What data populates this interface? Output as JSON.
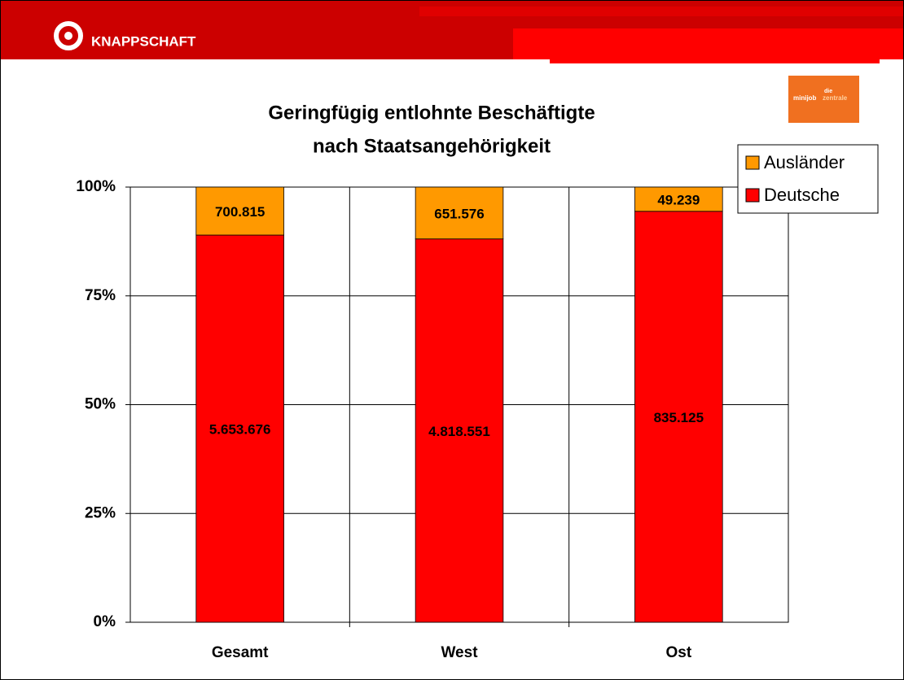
{
  "header": {
    "brand": "KNAPPSCHAFT",
    "logo_small": "die",
    "logo_main": "minijob",
    "logo_accent": "zentrale"
  },
  "chart_data": {
    "type": "bar",
    "stacked": "percent",
    "title": [
      "Geringfügig entlohnte Beschäftigte",
      "nach Staatsangehörigkeit"
    ],
    "categories": [
      "Gesamt",
      "West",
      "Ost"
    ],
    "series": [
      {
        "name": "Deutsche",
        "color": "#ff0000",
        "values": [
          5653676,
          4818551,
          835125
        ],
        "value_labels": [
          "5.653.676",
          "4.818.551",
          "835.125"
        ]
      },
      {
        "name": "Ausländer",
        "color": "#ff9900",
        "values": [
          700815,
          651576,
          49239
        ],
        "value_labels": [
          "700.815",
          "651.576",
          "49.239"
        ]
      }
    ],
    "ylim": [
      0,
      100
    ],
    "yticks": [
      {
        "value": 0,
        "label": "0%"
      },
      {
        "value": 25,
        "label": "25%"
      },
      {
        "value": 50,
        "label": "50%"
      },
      {
        "value": 75,
        "label": "75%"
      },
      {
        "value": 100,
        "label": "100%"
      }
    ],
    "grid": true,
    "legend": "top-right"
  }
}
